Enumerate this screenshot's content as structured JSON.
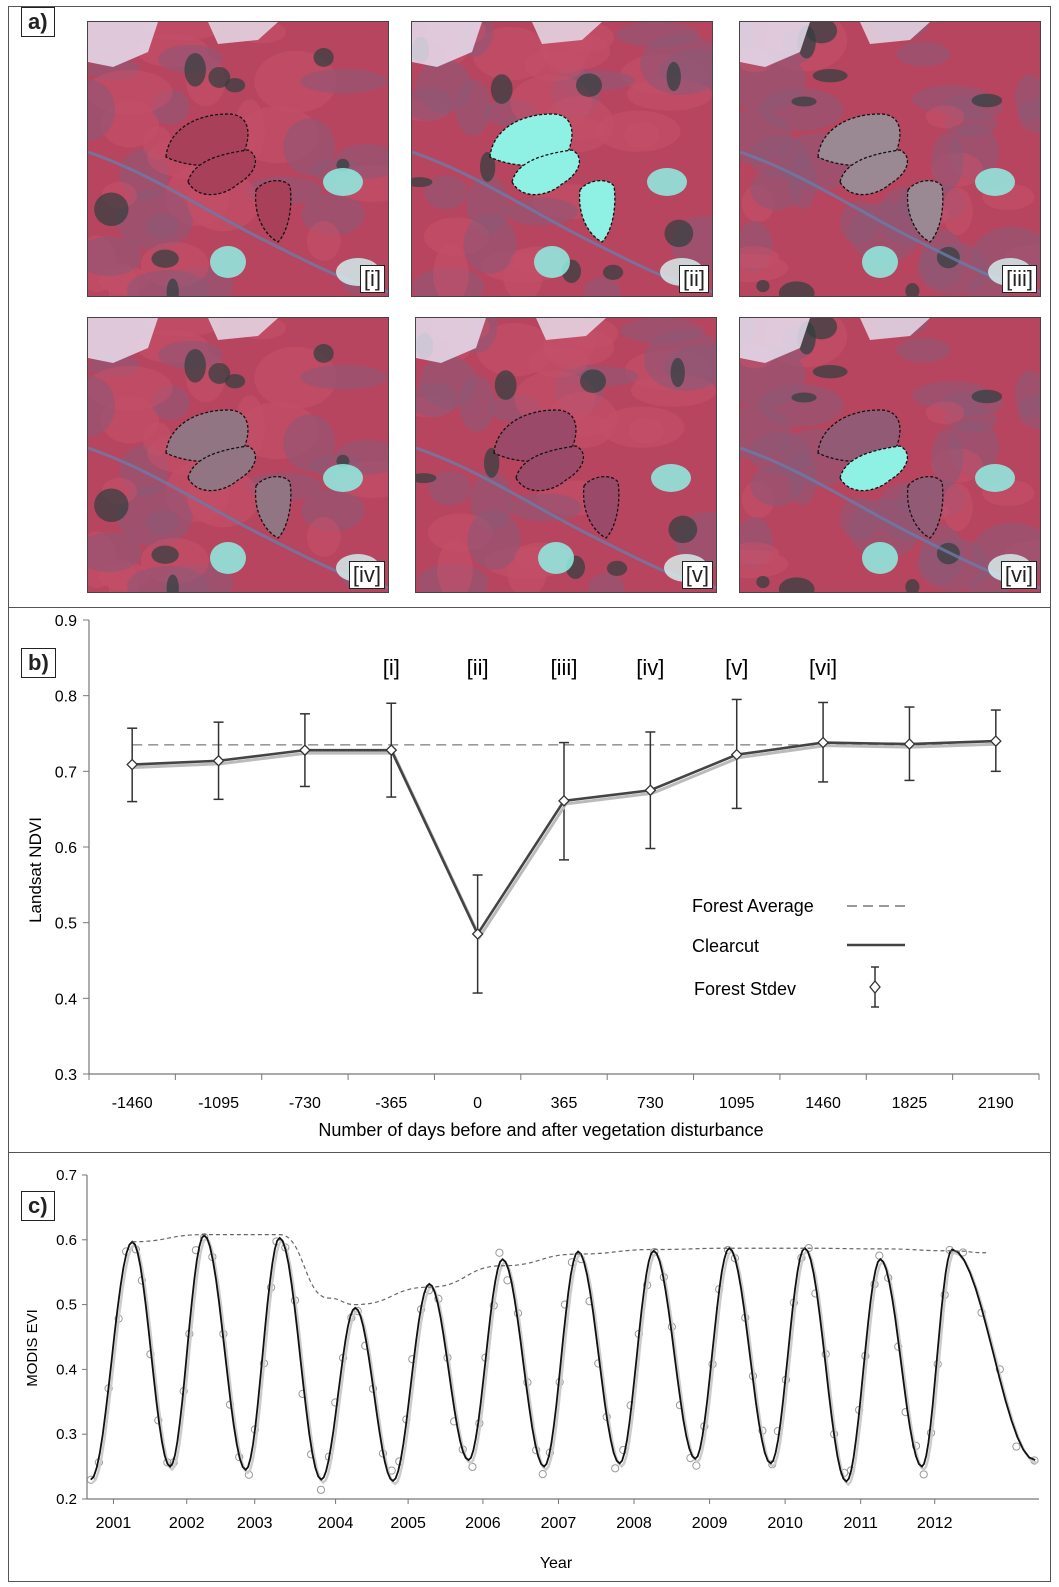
{
  "panel_a": {
    "label": "a)",
    "tiles": [
      {
        "tag": "[i]",
        "state": "pre"
      },
      {
        "tag": "[ii]",
        "state": "cut"
      },
      {
        "tag": "[iii]",
        "state": "regrow1"
      },
      {
        "tag": "[iv]",
        "state": "regrow2"
      },
      {
        "tag": "[v]",
        "state": "regrow3"
      },
      {
        "tag": "[vi]",
        "state": "regrow4"
      }
    ],
    "colors": {
      "vegetation": "#b8455f",
      "bare": "#8ff0e4",
      "dark": "#2f3e3e",
      "mauve": "#8a5a78"
    }
  },
  "chart_data": [
    {
      "type": "line",
      "label": "b)",
      "xlabel": "Number of days before and after vegetation disturbance",
      "ylabel": "Landsat NDVI",
      "ylim": [
        0.3,
        0.9
      ],
      "yticks": [
        "0.3",
        "0.4",
        "0.5",
        "0.6",
        "0.7",
        "0.8",
        "0.9"
      ],
      "x": [
        -1460,
        -1095,
        -730,
        -365,
        0,
        365,
        730,
        1095,
        1460,
        1825,
        2190
      ],
      "xtick_labels": [
        "-1460",
        "-1095",
        "-730",
        "-365",
        "0",
        "365",
        "730",
        "1095",
        "1460",
        "1825",
        "2190"
      ],
      "series": [
        {
          "name": "Clearcut",
          "style": "solid",
          "color": "#444444",
          "values": [
            0.709,
            0.714,
            0.728,
            0.728,
            0.485,
            0.661,
            0.675,
            0.722,
            0.738,
            0.736,
            0.74
          ]
        },
        {
          "name": "Forest Average",
          "style": "dashed",
          "color": "#999999",
          "value": 0.735
        },
        {
          "name": "Forest Stdev",
          "style": "errorbar",
          "upper": [
            0.757,
            0.765,
            0.776,
            0.79,
            0.563,
            0.738,
            0.752,
            0.795,
            0.791,
            0.785,
            0.781
          ],
          "lower": [
            0.66,
            0.663,
            0.68,
            0.666,
            0.407,
            0.583,
            0.598,
            0.651,
            0.686,
            0.688,
            0.7
          ]
        }
      ],
      "annotations": [
        {
          "text": "[i]",
          "x": -365
        },
        {
          "text": "[ii]",
          "x": 0
        },
        {
          "text": "[iii]",
          "x": 365
        },
        {
          "text": "[iv]",
          "x": 730
        },
        {
          "text": "[v]",
          "x": 1095
        },
        {
          "text": "[vi]",
          "x": 1460
        }
      ],
      "legend": [
        "Forest Average",
        "Clearcut",
        "Forest Stdev"
      ],
      "legend_position": "bottom-right",
      "grid": false
    },
    {
      "type": "line",
      "label": "c)",
      "xlabel": "Year",
      "ylabel": "MODIS  EVI",
      "ylim": [
        0.2,
        0.7
      ],
      "yticks": [
        "0.2",
        "0.3",
        "0.4",
        "0.5",
        "0.6",
        "0.7"
      ],
      "xlim": [
        2000.4,
        2013.0
      ],
      "xtick_labels": [
        "2001",
        "2002",
        "2003",
        "2004",
        "2005",
        "2006",
        "2007",
        "2008",
        "2009",
        "2010",
        "2011",
        "2012"
      ],
      "xtick_values": [
        2000.75,
        2001.72,
        2002.62,
        2003.69,
        2004.65,
        2005.64,
        2006.64,
        2007.64,
        2008.64,
        2009.64,
        2010.64,
        2011.62
      ],
      "peaks": [
        {
          "x": 2001.0,
          "y": 0.597
        },
        {
          "x": 2001.95,
          "y": 0.607
        },
        {
          "x": 2002.95,
          "y": 0.603
        },
        {
          "x": 2003.95,
          "y": 0.495
        },
        {
          "x": 2004.93,
          "y": 0.532
        },
        {
          "x": 2005.9,
          "y": 0.57
        },
        {
          "x": 2006.9,
          "y": 0.582
        },
        {
          "x": 2007.9,
          "y": 0.583
        },
        {
          "x": 2008.9,
          "y": 0.587
        },
        {
          "x": 2009.9,
          "y": 0.587
        },
        {
          "x": 2010.9,
          "y": 0.57
        },
        {
          "x": 2011.85,
          "y": 0.585
        }
      ],
      "troughs": [
        {
          "x": 2000.45,
          "y": 0.23
        },
        {
          "x": 2001.5,
          "y": 0.25
        },
        {
          "x": 2002.5,
          "y": 0.245
        },
        {
          "x": 2003.5,
          "y": 0.23
        },
        {
          "x": 2004.45,
          "y": 0.228
        },
        {
          "x": 2005.45,
          "y": 0.26
        },
        {
          "x": 2006.45,
          "y": 0.25
        },
        {
          "x": 2007.45,
          "y": 0.255
        },
        {
          "x": 2008.45,
          "y": 0.262
        },
        {
          "x": 2009.45,
          "y": 0.255
        },
        {
          "x": 2010.45,
          "y": 0.227
        },
        {
          "x": 2011.45,
          "y": 0.25
        },
        {
          "x": 2012.95,
          "y": 0.26
        }
      ],
      "envelope": [
        [
          2001.0,
          0.597
        ],
        [
          2001.95,
          0.608
        ],
        [
          2002.95,
          0.608
        ],
        [
          2003.6,
          0.51
        ],
        [
          2003.95,
          0.5
        ],
        [
          2004.93,
          0.527
        ],
        [
          2005.9,
          0.56
        ],
        [
          2006.9,
          0.578
        ],
        [
          2007.9,
          0.585
        ],
        [
          2008.9,
          0.587
        ],
        [
          2009.9,
          0.587
        ],
        [
          2010.9,
          0.586
        ],
        [
          2011.85,
          0.583
        ],
        [
          2012.3,
          0.58
        ]
      ],
      "series": [
        {
          "name": "",
          "style": "solid",
          "color": "#111111"
        },
        {
          "name": "",
          "style": "dashed",
          "color": "#666666"
        },
        {
          "name": "",
          "style": "markers",
          "color": "#888888"
        }
      ],
      "grid": false
    }
  ]
}
